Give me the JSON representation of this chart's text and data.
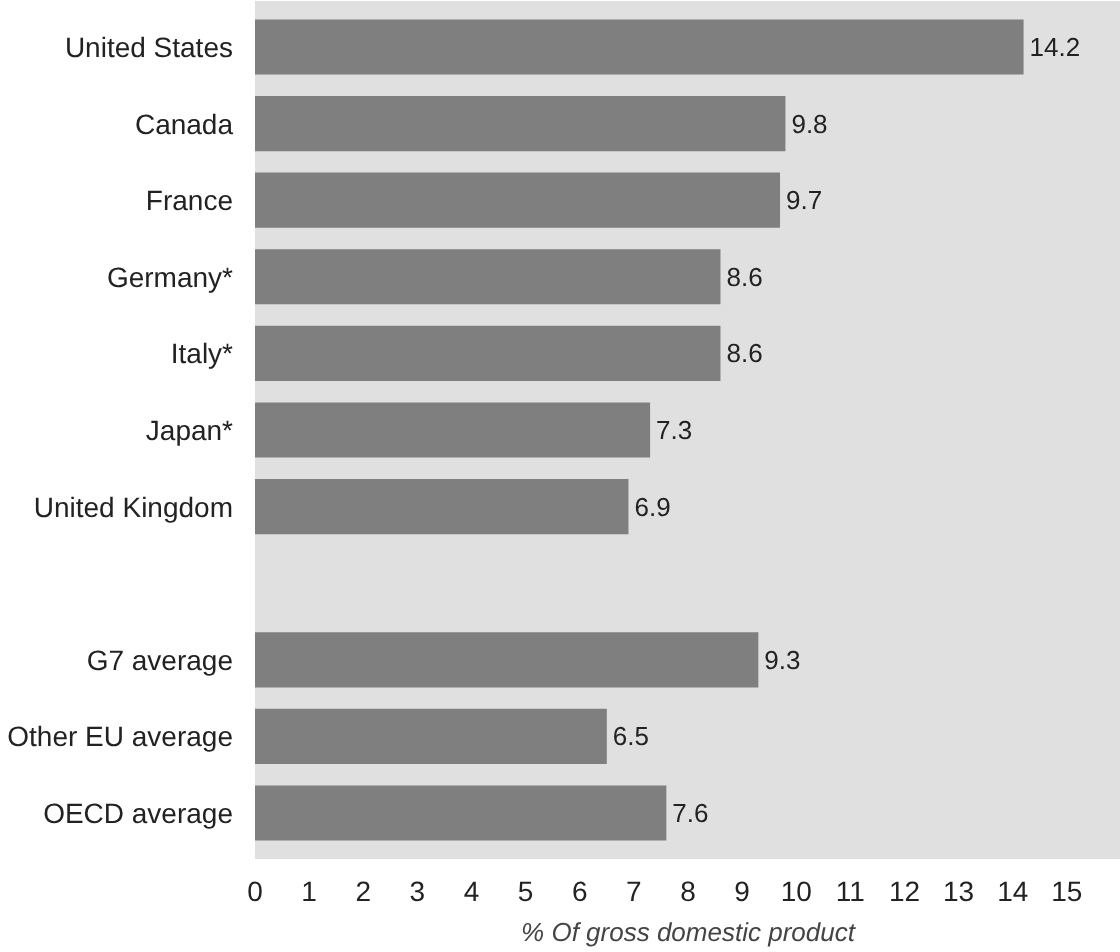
{
  "chart_data": {
    "type": "bar",
    "orientation": "horizontal",
    "xlabel": "% Of gross domestic product",
    "categories": [
      "United States",
      "Canada",
      "France",
      "Germany*",
      "Italy*",
      "Japan*",
      "United Kingdom",
      null,
      "G7 average",
      "Other EU average",
      "OECD average"
    ],
    "values": [
      14.2,
      9.8,
      9.7,
      8.6,
      8.6,
      7.3,
      6.9,
      null,
      9.3,
      6.5,
      7.6
    ],
    "color": "#7f7f7f",
    "data_labels": true,
    "xlim": [
      0,
      16
    ],
    "xticks": [
      0,
      1,
      2,
      3,
      4,
      5,
      6,
      7,
      8,
      9,
      10,
      11,
      12,
      13,
      14,
      15
    ]
  }
}
